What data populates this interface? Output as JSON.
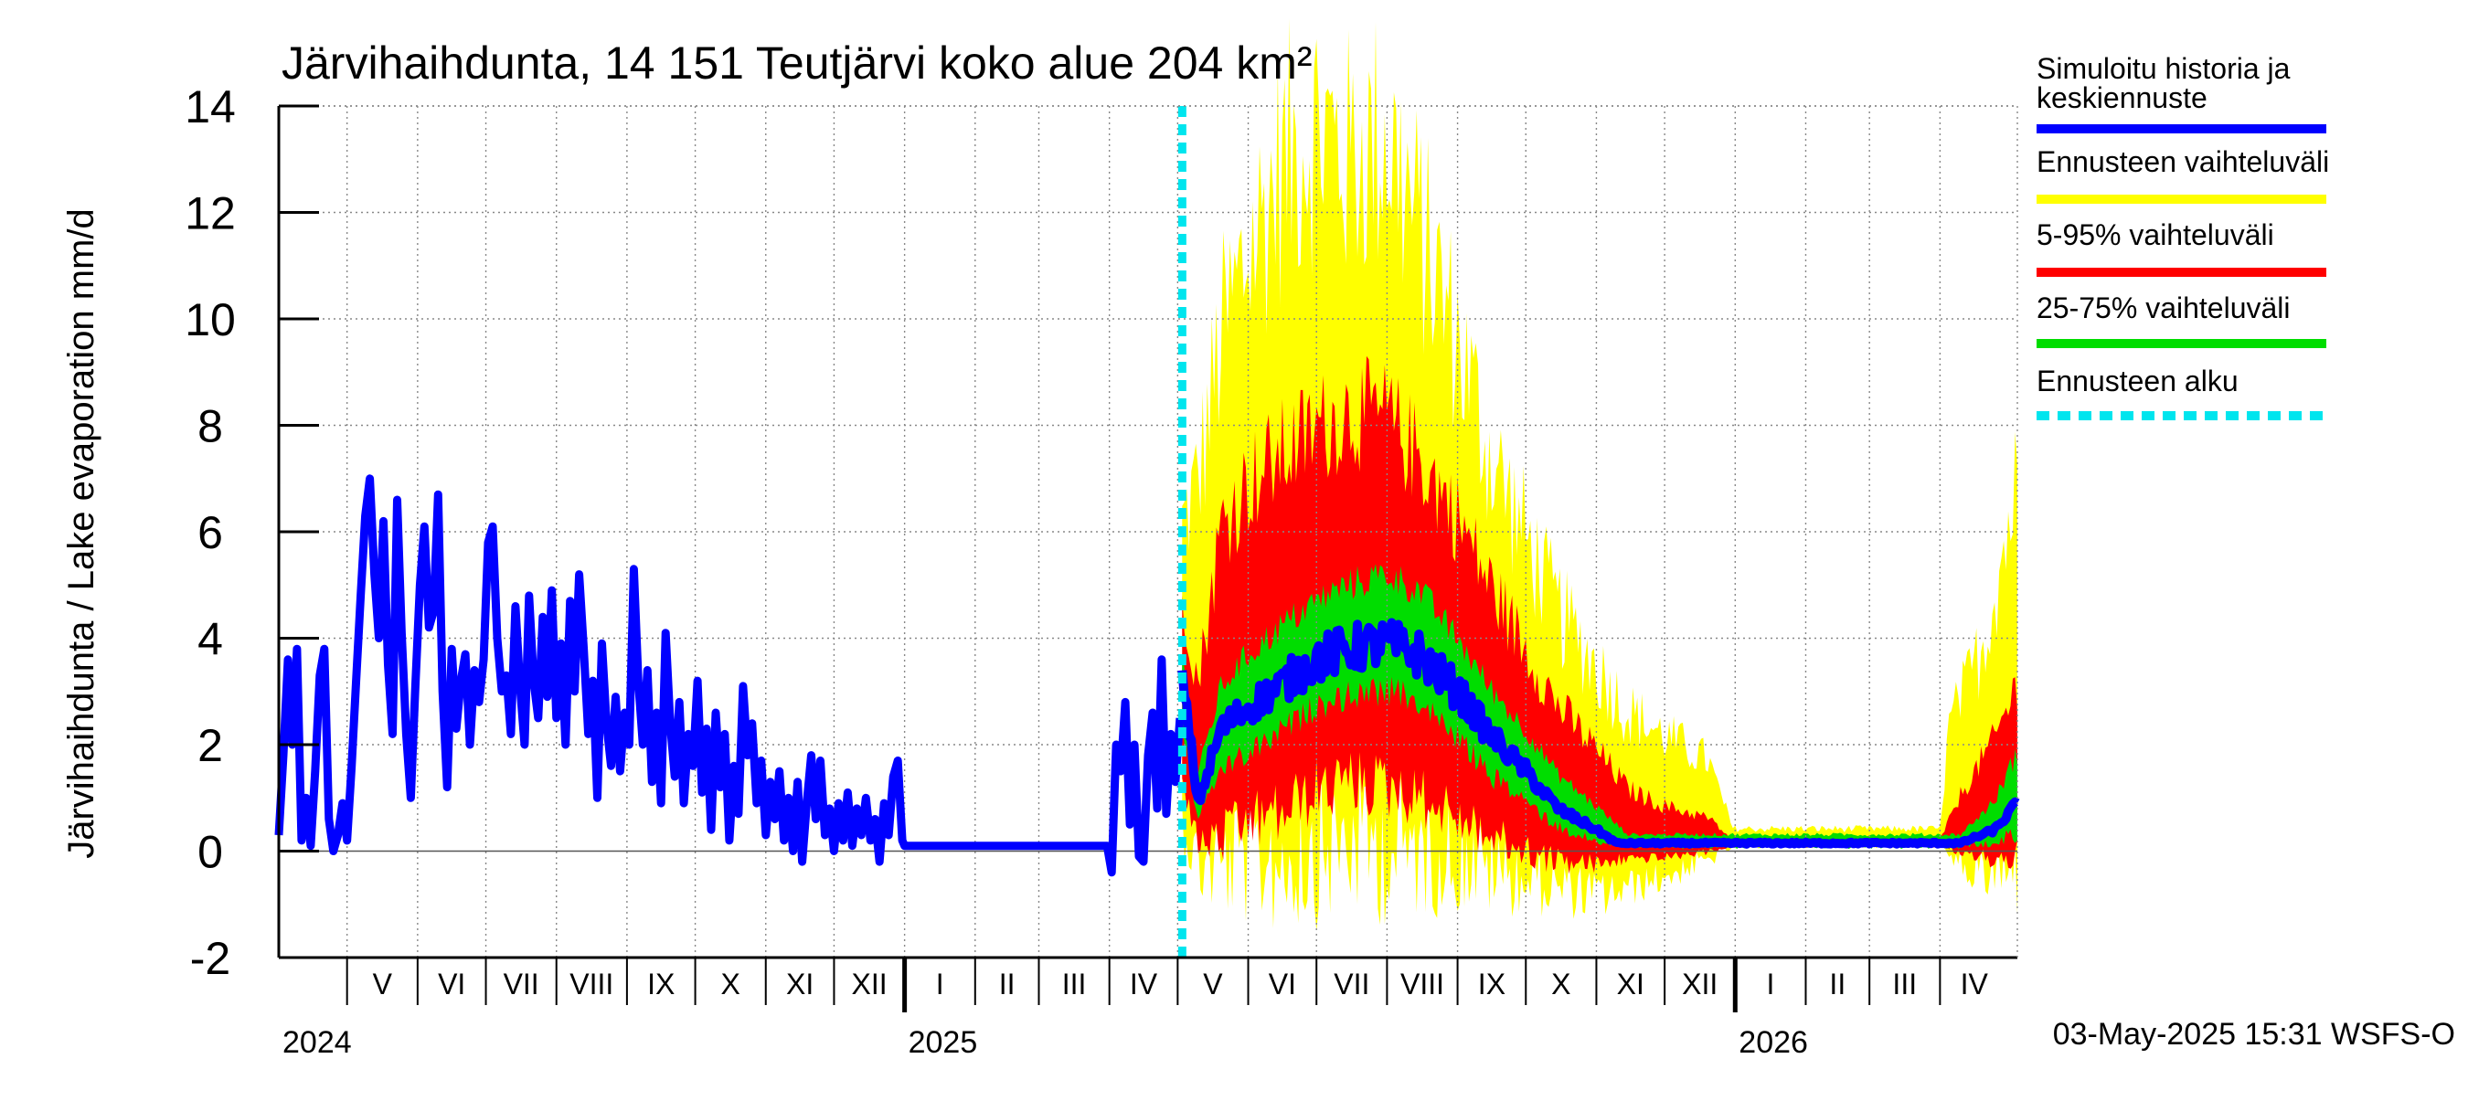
{
  "chart_data": {
    "type": "area",
    "title": "Järvihaihdunta, 14 151 Teutjärvi koko alue 204 km²",
    "ylabel": "Järvihaihdunta / Lake evaporation   mm/d",
    "ylim": [
      -2,
      14
    ],
    "yticks": [
      -2,
      0,
      2,
      4,
      6,
      8,
      10,
      12,
      14
    ],
    "grid": true,
    "legend_position": "right",
    "x_start": "2024-04-01",
    "x_end": "2026-05-05",
    "forecast_start": "2025-05-03",
    "month_labels": [
      {
        "label": "V",
        "start": "2024-05-01",
        "end": "2024-06-01"
      },
      {
        "label": "VI",
        "start": "2024-06-01",
        "end": "2024-07-01"
      },
      {
        "label": "VII",
        "start": "2024-07-01",
        "end": "2024-08-01"
      },
      {
        "label": "VIII",
        "start": "2024-08-01",
        "end": "2024-09-01"
      },
      {
        "label": "IX",
        "start": "2024-09-01",
        "end": "2024-10-01"
      },
      {
        "label": "X",
        "start": "2024-10-01",
        "end": "2024-11-01"
      },
      {
        "label": "XI",
        "start": "2024-11-01",
        "end": "2024-12-01"
      },
      {
        "label": "XII",
        "start": "2024-12-01",
        "end": "2025-01-01"
      },
      {
        "label": "I",
        "start": "2025-01-01",
        "end": "2025-02-01"
      },
      {
        "label": "II",
        "start": "2025-02-01",
        "end": "2025-03-01"
      },
      {
        "label": "III",
        "start": "2025-03-01",
        "end": "2025-04-01"
      },
      {
        "label": "IV",
        "start": "2025-04-01",
        "end": "2025-05-01"
      },
      {
        "label": "V",
        "start": "2025-05-01",
        "end": "2025-06-01"
      },
      {
        "label": "VI",
        "start": "2025-06-01",
        "end": "2025-07-01"
      },
      {
        "label": "VII",
        "start": "2025-07-01",
        "end": "2025-08-01"
      },
      {
        "label": "VIII",
        "start": "2025-08-01",
        "end": "2025-09-01"
      },
      {
        "label": "IX",
        "start": "2025-09-01",
        "end": "2025-10-01"
      },
      {
        "label": "X",
        "start": "2025-10-01",
        "end": "2025-11-01"
      },
      {
        "label": "XI",
        "start": "2025-11-01",
        "end": "2025-12-01"
      },
      {
        "label": "XII",
        "start": "2025-12-01",
        "end": "2026-01-01"
      },
      {
        "label": "I",
        "start": "2026-01-01",
        "end": "2026-02-01"
      },
      {
        "label": "II",
        "start": "2026-02-01",
        "end": "2026-03-01"
      },
      {
        "label": "III",
        "start": "2026-03-01",
        "end": "2026-04-01"
      },
      {
        "label": "IV",
        "start": "2026-04-01",
        "end": "2026-05-01"
      }
    ],
    "year_labels": [
      {
        "label": "2024",
        "date": "2024-04-01"
      },
      {
        "label": "2025",
        "date": "2025-01-01"
      },
      {
        "label": "2026",
        "date": "2026-01-01"
      }
    ],
    "history": {
      "name": "Simuloitu historia ja keskiennuste",
      "color": "#0000ff",
      "points": [
        [
          "2024-04-01",
          0.3
        ],
        [
          "2024-04-03",
          1.8
        ],
        [
          "2024-04-05",
          3.6
        ],
        [
          "2024-04-07",
          2.0
        ],
        [
          "2024-04-09",
          3.8
        ],
        [
          "2024-04-11",
          0.2
        ],
        [
          "2024-04-13",
          1.0
        ],
        [
          "2024-04-15",
          0.1
        ],
        [
          "2024-04-17",
          1.5
        ],
        [
          "2024-04-19",
          3.3
        ],
        [
          "2024-04-21",
          3.8
        ],
        [
          "2024-04-23",
          0.6
        ],
        [
          "2024-04-25",
          0.0
        ],
        [
          "2024-04-27",
          0.3
        ],
        [
          "2024-04-29",
          0.9
        ],
        [
          "2024-05-01",
          0.2
        ],
        [
          "2024-05-03",
          1.6
        ],
        [
          "2024-05-05",
          3.2
        ],
        [
          "2024-05-07",
          4.8
        ],
        [
          "2024-05-09",
          6.3
        ],
        [
          "2024-05-11",
          7.0
        ],
        [
          "2024-05-13",
          5.2
        ],
        [
          "2024-05-15",
          4.0
        ],
        [
          "2024-05-17",
          6.2
        ],
        [
          "2024-05-19",
          3.5
        ],
        [
          "2024-05-21",
          2.2
        ],
        [
          "2024-05-23",
          6.6
        ],
        [
          "2024-05-25",
          4.1
        ],
        [
          "2024-05-27",
          2.2
        ],
        [
          "2024-05-29",
          1.0
        ],
        [
          "2024-05-31",
          3.1
        ],
        [
          "2024-06-02",
          5.0
        ],
        [
          "2024-06-04",
          6.1
        ],
        [
          "2024-06-06",
          4.2
        ],
        [
          "2024-06-08",
          4.5
        ],
        [
          "2024-06-10",
          6.7
        ],
        [
          "2024-06-12",
          3.0
        ],
        [
          "2024-06-14",
          1.2
        ],
        [
          "2024-06-16",
          3.8
        ],
        [
          "2024-06-18",
          2.3
        ],
        [
          "2024-06-20",
          3.2
        ],
        [
          "2024-06-22",
          3.7
        ],
        [
          "2024-06-24",
          2.0
        ],
        [
          "2024-06-26",
          3.4
        ],
        [
          "2024-06-28",
          2.8
        ],
        [
          "2024-06-30",
          3.6
        ],
        [
          "2024-07-02",
          5.8
        ],
        [
          "2024-07-04",
          6.1
        ],
        [
          "2024-07-06",
          4.0
        ],
        [
          "2024-07-08",
          3.0
        ],
        [
          "2024-07-10",
          3.3
        ],
        [
          "2024-07-12",
          2.2
        ],
        [
          "2024-07-14",
          4.6
        ],
        [
          "2024-07-16",
          3.1
        ],
        [
          "2024-07-18",
          2.0
        ],
        [
          "2024-07-20",
          4.8
        ],
        [
          "2024-07-22",
          3.2
        ],
        [
          "2024-07-24",
          2.5
        ],
        [
          "2024-07-26",
          4.4
        ],
        [
          "2024-07-28",
          2.9
        ],
        [
          "2024-07-30",
          4.9
        ],
        [
          "2024-08-01",
          2.5
        ],
        [
          "2024-08-03",
          3.9
        ],
        [
          "2024-08-05",
          2.0
        ],
        [
          "2024-08-07",
          4.7
        ],
        [
          "2024-08-09",
          3.0
        ],
        [
          "2024-08-11",
          5.2
        ],
        [
          "2024-08-13",
          3.8
        ],
        [
          "2024-08-15",
          2.2
        ],
        [
          "2024-08-17",
          3.2
        ],
        [
          "2024-08-19",
          1.0
        ],
        [
          "2024-08-21",
          3.9
        ],
        [
          "2024-08-23",
          2.4
        ],
        [
          "2024-08-25",
          1.6
        ],
        [
          "2024-08-27",
          2.9
        ],
        [
          "2024-08-29",
          1.5
        ],
        [
          "2024-08-31",
          2.6
        ],
        [
          "2024-09-02",
          2.0
        ],
        [
          "2024-09-04",
          5.3
        ],
        [
          "2024-09-06",
          3.2
        ],
        [
          "2024-09-08",
          2.0
        ],
        [
          "2024-09-10",
          3.4
        ],
        [
          "2024-09-12",
          1.3
        ],
        [
          "2024-09-14",
          2.6
        ],
        [
          "2024-09-16",
          0.9
        ],
        [
          "2024-09-18",
          4.1
        ],
        [
          "2024-09-20",
          2.4
        ],
        [
          "2024-09-22",
          1.4
        ],
        [
          "2024-09-24",
          2.8
        ],
        [
          "2024-09-26",
          0.9
        ],
        [
          "2024-09-28",
          2.2
        ],
        [
          "2024-09-30",
          1.6
        ],
        [
          "2024-10-02",
          3.2
        ],
        [
          "2024-10-04",
          1.1
        ],
        [
          "2024-10-06",
          2.3
        ],
        [
          "2024-10-08",
          0.4
        ],
        [
          "2024-10-10",
          2.6
        ],
        [
          "2024-10-12",
          1.2
        ],
        [
          "2024-10-14",
          2.2
        ],
        [
          "2024-10-16",
          0.2
        ],
        [
          "2024-10-18",
          1.6
        ],
        [
          "2024-10-20",
          0.7
        ],
        [
          "2024-10-22",
          3.1
        ],
        [
          "2024-10-24",
          1.8
        ],
        [
          "2024-10-26",
          2.4
        ],
        [
          "2024-10-28",
          0.9
        ],
        [
          "2024-10-30",
          1.7
        ],
        [
          "2024-11-01",
          0.3
        ],
        [
          "2024-11-03",
          1.3
        ],
        [
          "2024-11-05",
          0.6
        ],
        [
          "2024-11-07",
          1.5
        ],
        [
          "2024-11-09",
          0.2
        ],
        [
          "2024-11-11",
          1.0
        ],
        [
          "2024-11-13",
          0.0
        ],
        [
          "2024-11-15",
          1.3
        ],
        [
          "2024-11-17",
          -0.2
        ],
        [
          "2024-11-19",
          0.9
        ],
        [
          "2024-11-21",
          1.8
        ],
        [
          "2024-11-23",
          0.6
        ],
        [
          "2024-11-25",
          1.7
        ],
        [
          "2024-11-27",
          0.3
        ],
        [
          "2024-11-29",
          0.8
        ],
        [
          "2024-12-01",
          0.0
        ],
        [
          "2024-12-03",
          0.9
        ],
        [
          "2024-12-05",
          0.2
        ],
        [
          "2024-12-07",
          1.1
        ],
        [
          "2024-12-09",
          0.1
        ],
        [
          "2024-12-11",
          0.8
        ],
        [
          "2024-12-13",
          0.3
        ],
        [
          "2024-12-15",
          1.0
        ],
        [
          "2024-12-17",
          0.2
        ],
        [
          "2024-12-19",
          0.6
        ],
        [
          "2024-12-21",
          -0.2
        ],
        [
          "2024-12-23",
          0.9
        ],
        [
          "2024-12-25",
          0.3
        ],
        [
          "2024-12-27",
          1.4
        ],
        [
          "2024-12-29",
          1.7
        ],
        [
          "2024-12-31",
          0.2
        ],
        [
          "2025-01-01",
          0.1
        ],
        [
          "2025-03-31",
          0.1
        ],
        [
          "2025-04-02",
          -0.4
        ],
        [
          "2025-04-04",
          2.0
        ],
        [
          "2025-04-06",
          1.5
        ],
        [
          "2025-04-08",
          2.8
        ],
        [
          "2025-04-10",
          0.5
        ],
        [
          "2025-04-12",
          2.0
        ],
        [
          "2025-04-14",
          -0.1
        ],
        [
          "2025-04-16",
          -0.2
        ],
        [
          "2025-04-18",
          1.8
        ],
        [
          "2025-04-20",
          2.6
        ],
        [
          "2025-04-22",
          0.8
        ],
        [
          "2025-04-24",
          3.6
        ],
        [
          "2025-04-26",
          0.7
        ],
        [
          "2025-04-28",
          2.2
        ],
        [
          "2025-04-30",
          1.3
        ],
        [
          "2025-05-02",
          2.5
        ]
      ]
    },
    "forecast": {
      "start": "2025-05-03",
      "end": "2026-05-05",
      "bands": [
        {
          "name": "Ennusteen vaihteluväli",
          "color": "#ffff00"
        },
        {
          "name": "5-95% vaihteluväli",
          "color": "#ff0000"
        },
        {
          "name": "25-75% vaihteluväli",
          "color": "#00dd00"
        }
      ],
      "median": [
        [
          "2025-05-03",
          3.2
        ],
        [
          "2025-05-10",
          0.9
        ],
        [
          "2025-05-20",
          2.3
        ],
        [
          "2025-06-01",
          2.7
        ],
        [
          "2025-06-15",
          3.1
        ],
        [
          "2025-07-01",
          3.6
        ],
        [
          "2025-07-15",
          3.8
        ],
        [
          "2025-08-01",
          3.9
        ],
        [
          "2025-08-15",
          3.7
        ],
        [
          "2025-09-01",
          3.0
        ],
        [
          "2025-09-15",
          2.2
        ],
        [
          "2025-10-01",
          1.5
        ],
        [
          "2025-10-15",
          0.8
        ],
        [
          "2025-11-01",
          0.4
        ],
        [
          "2025-11-10",
          0.15
        ],
        [
          "2026-04-10",
          0.15
        ],
        [
          "2026-04-25",
          0.4
        ],
        [
          "2026-05-05",
          0.9
        ]
      ],
      "p25_75": [
        [
          "2025-05-03",
          2.4,
          3.8
        ],
        [
          "2025-05-10",
          0.6,
          1.4
        ],
        [
          "2025-05-20",
          1.6,
          3.0
        ],
        [
          "2025-06-01",
          1.9,
          3.6
        ],
        [
          "2025-06-15",
          2.3,
          4.1
        ],
        [
          "2025-07-01",
          2.8,
          4.6
        ],
        [
          "2025-07-15",
          3.0,
          4.9
        ],
        [
          "2025-08-01",
          3.1,
          5.1
        ],
        [
          "2025-08-15",
          2.9,
          4.8
        ],
        [
          "2025-09-01",
          2.2,
          3.9
        ],
        [
          "2025-09-15",
          1.5,
          3.0
        ],
        [
          "2025-10-01",
          1.0,
          2.2
        ],
        [
          "2025-10-15",
          0.5,
          1.4
        ],
        [
          "2025-11-01",
          0.2,
          0.8
        ],
        [
          "2025-11-15",
          0.1,
          0.3
        ],
        [
          "2026-04-10",
          0.1,
          0.3
        ],
        [
          "2026-04-25",
          0.2,
          0.9
        ],
        [
          "2026-05-05",
          0.4,
          1.8
        ]
      ],
      "p5_95": [
        [
          "2025-05-03",
          1.5,
          4.6
        ],
        [
          "2025-05-10",
          0.2,
          3.0
        ],
        [
          "2025-05-20",
          0.4,
          5.8
        ],
        [
          "2025-06-01",
          0.7,
          6.6
        ],
        [
          "2025-06-15",
          0.9,
          7.1
        ],
        [
          "2025-07-01",
          1.3,
          7.6
        ],
        [
          "2025-07-15",
          1.5,
          7.9
        ],
        [
          "2025-08-01",
          1.4,
          7.8
        ],
        [
          "2025-08-15",
          1.2,
          7.1
        ],
        [
          "2025-09-01",
          0.8,
          6.0
        ],
        [
          "2025-09-15",
          0.4,
          4.8
        ],
        [
          "2025-10-01",
          0.1,
          3.6
        ],
        [
          "2025-10-15",
          -0.1,
          2.6
        ],
        [
          "2025-11-01",
          -0.2,
          1.8
        ],
        [
          "2025-11-15",
          -0.1,
          1.1
        ],
        [
          "2025-12-01",
          -0.1,
          0.8
        ],
        [
          "2025-12-20",
          0.0,
          0.6
        ],
        [
          "2025-12-31",
          0.1,
          0.2
        ],
        [
          "2026-04-01",
          0.1,
          0.2
        ],
        [
          "2026-04-10",
          0.0,
          1.0
        ],
        [
          "2026-04-25",
          -0.1,
          2.0
        ],
        [
          "2026-05-05",
          0.0,
          3.0
        ]
      ],
      "min_max": [
        [
          "2025-05-03",
          0.8,
          5.8
        ],
        [
          "2025-05-10",
          0.0,
          6.5
        ],
        [
          "2025-05-20",
          0.1,
          9.0
        ],
        [
          "2025-06-01",
          0.2,
          10.5
        ],
        [
          "2025-06-15",
          0.3,
          12.0
        ],
        [
          "2025-07-01",
          0.5,
          12.8
        ],
        [
          "2025-07-15",
          0.6,
          12.2
        ],
        [
          "2025-08-01",
          0.5,
          12.6
        ],
        [
          "2025-08-15",
          0.4,
          11.0
        ],
        [
          "2025-09-01",
          0.2,
          9.0
        ],
        [
          "2025-09-15",
          -0.1,
          7.0
        ],
        [
          "2025-10-01",
          -0.3,
          5.5
        ],
        [
          "2025-10-15",
          -0.5,
          4.2
        ],
        [
          "2025-11-01",
          -0.7,
          3.2
        ],
        [
          "2025-11-15",
          -0.6,
          2.4
        ],
        [
          "2025-12-01",
          -0.4,
          2.0
        ],
        [
          "2025-12-20",
          -0.1,
          1.6
        ],
        [
          "2025-12-31",
          0.1,
          0.4
        ],
        [
          "2026-04-01",
          0.1,
          0.4
        ],
        [
          "2026-04-05",
          -0.1,
          2.2
        ],
        [
          "2026-04-20",
          -0.3,
          3.6
        ],
        [
          "2026-05-05",
          -0.2,
          6.5
        ]
      ]
    }
  },
  "legend": {
    "items": [
      {
        "label": "Simuloitu historia ja keskiennuste",
        "color": "#0000ff",
        "style": "solid"
      },
      {
        "label": "Ennusteen vaihteluväli",
        "color": "#ffff00",
        "style": "solid"
      },
      {
        "label": "5-95% vaihteluväli",
        "color": "#ff0000",
        "style": "solid"
      },
      {
        "label": "25-75% vaihteluväli",
        "color": "#00dd00",
        "style": "solid"
      },
      {
        "label": "Ennusteen alku",
        "color": "#00e5ee",
        "style": "dashed"
      }
    ]
  },
  "footer": {
    "timestamp": "03-May-2025 15:31 WSFS-O"
  }
}
